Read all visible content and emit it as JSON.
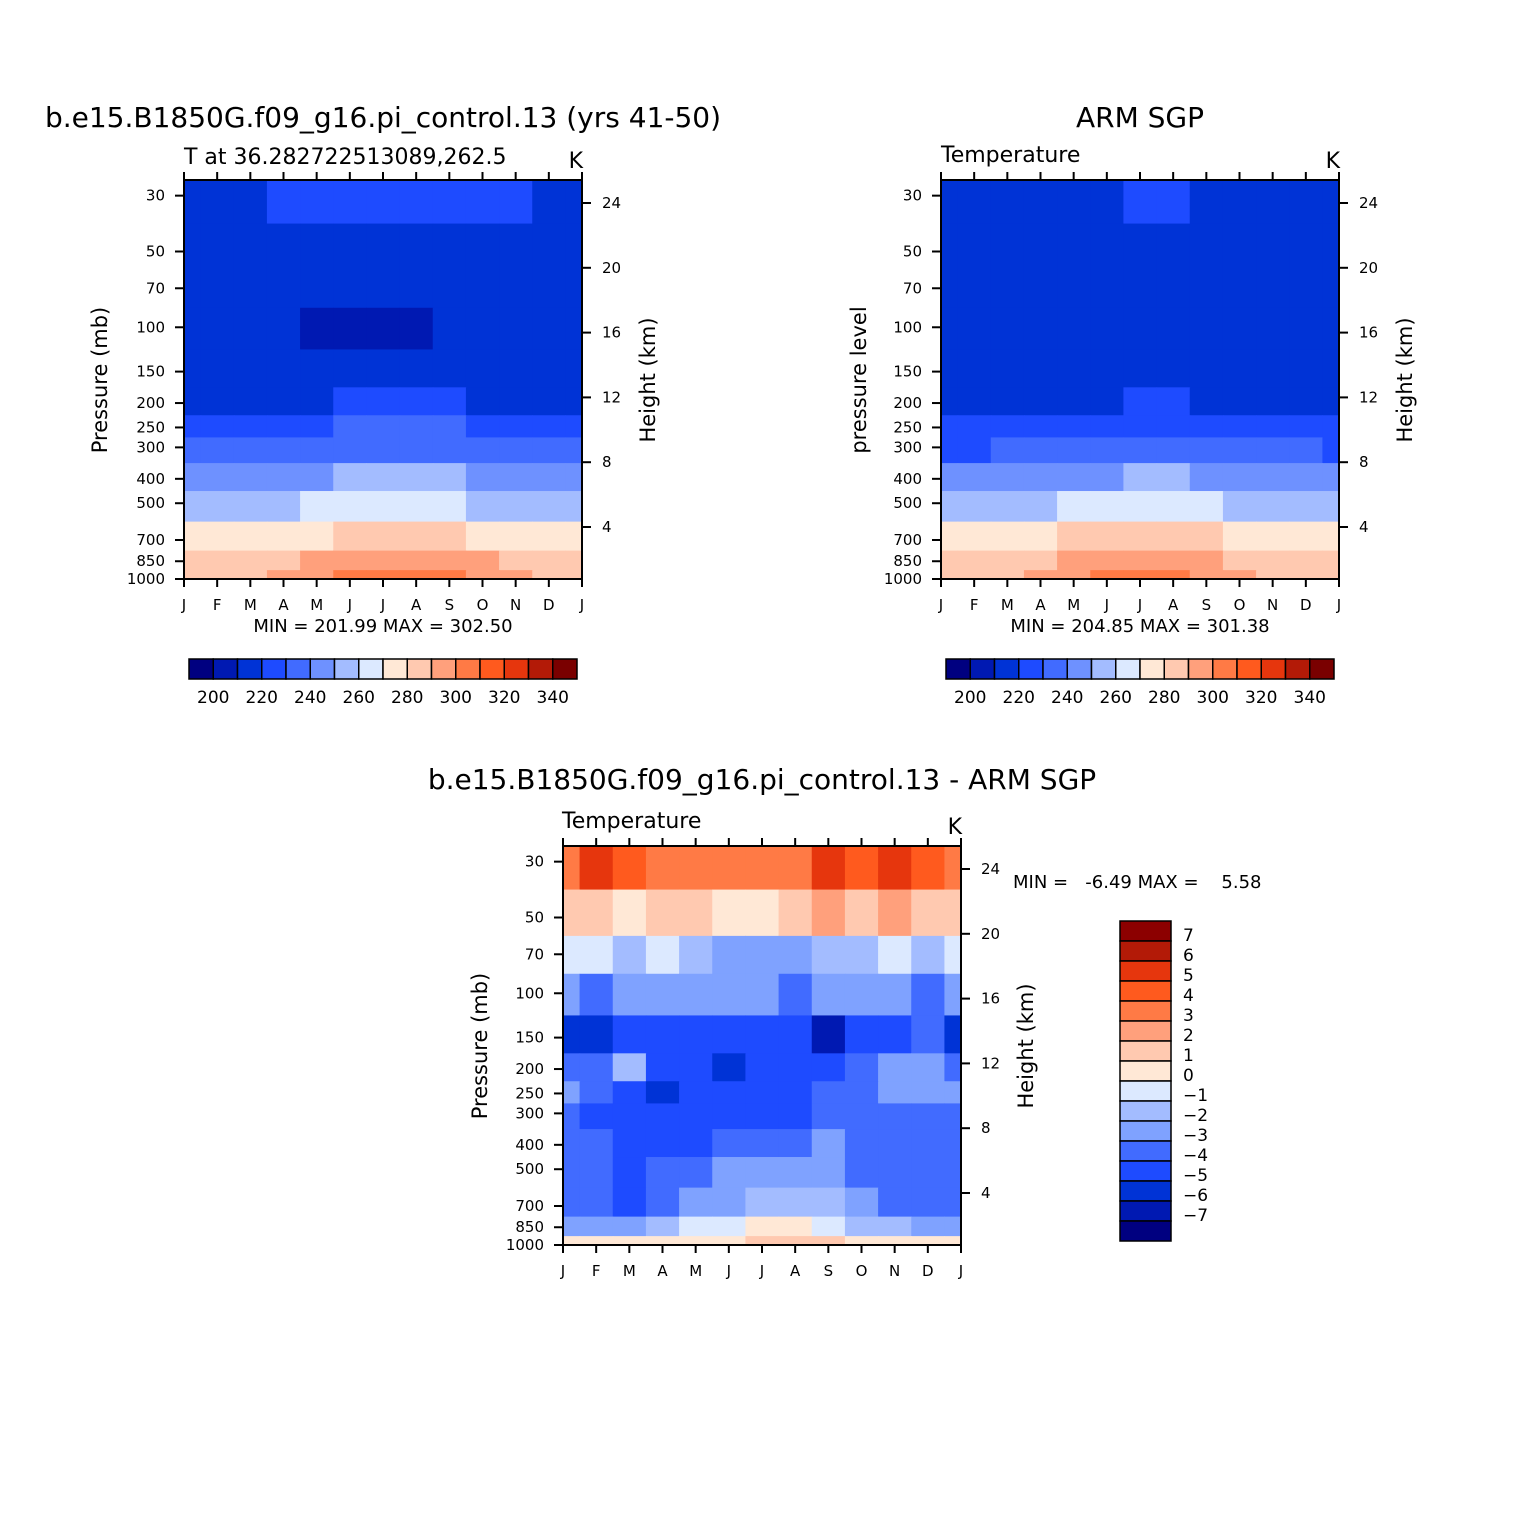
{
  "panels": [
    {
      "title": "b.e15.B1850G.f09_g16.pi_control.13 (yrs 41-50)",
      "subtitle": "T at 36.282722513089,262.5",
      "units": "K",
      "left_axis_label": "Pressure (mb)",
      "right_axis_label": "Height (km)",
      "stats": "MIN = 201.99 MAX = 302.50"
    },
    {
      "title": "ARM SGP",
      "subtitle": "Temperature",
      "units": "K",
      "left_axis_label": "pressure level",
      "right_axis_label": "Height (km)",
      "stats": "MIN = 204.85 MAX = 301.38"
    },
    {
      "title": "b.e15.B1850G.f09_g16.pi_control.13 - ARM SGP",
      "subtitle": "Temperature",
      "units": "K",
      "left_axis_label": "Pressure (mb)",
      "right_axis_label": "Height (km)",
      "stats": "MIN =   -6.49 MAX =    5.58"
    }
  ],
  "colorbars": {
    "absolute": {
      "labels": [
        "200",
        "220",
        "240",
        "260",
        "280",
        "300",
        "320",
        "340"
      ],
      "colors": [
        "#000080",
        "#0019b2",
        "#0033d6",
        "#1e4bff",
        "#416bff",
        "#6e91ff",
        "#a3bcff",
        "#dce9ff",
        "#ffe8d6",
        "#ffc9b0",
        "#ffa07c",
        "#ff7a45",
        "#ff5a1e",
        "#e6360d",
        "#b31a07",
        "#7a0000"
      ]
    },
    "difference": {
      "labels": [
        "7",
        "6",
        "5",
        "4",
        "3",
        "2",
        "1",
        "0",
        "-1",
        "-2",
        "-3",
        "-4",
        "-5",
        "-6",
        "-7"
      ],
      "colors": [
        "#8c0000",
        "#b31a07",
        "#e6360d",
        "#ff5a1e",
        "#ff7a45",
        "#ffa07c",
        "#ffc9b0",
        "#ffe8d6",
        "#dce9ff",
        "#a3bcff",
        "#7fa2ff",
        "#416bff",
        "#1e4bff",
        "#0033d6",
        "#0019b2",
        "#000080"
      ]
    }
  },
  "chart_data": [
    {
      "type": "heatmap",
      "title": "b.e15.B1850G.f09_g16.pi_control.13 (yrs 41-50)",
      "subtitle": "T at 36.282722513089,262.5",
      "units": "K",
      "x": [
        "J",
        "F",
        "M",
        "A",
        "M",
        "J",
        "J",
        "A",
        "S",
        "O",
        "N",
        "D",
        "J"
      ],
      "y_pressure_mb": [
        30,
        50,
        70,
        100,
        150,
        200,
        250,
        300,
        400,
        500,
        700,
        850,
        1000
      ],
      "y_height_km": [
        24,
        20,
        16,
        12,
        8,
        4
      ],
      "levels_K": [
        195,
        205,
        215,
        225,
        235,
        245,
        255,
        265,
        275,
        285,
        295,
        305,
        315,
        325,
        335,
        345
      ],
      "values_K": [
        [
          214,
          214,
          214,
          215,
          217,
          218,
          219,
          219,
          219,
          218,
          215,
          214,
          214
        ],
        [
          211,
          212,
          212,
          212,
          212,
          213,
          213,
          213,
          213,
          213,
          212,
          212,
          211
        ],
        [
          207,
          207,
          209,
          209,
          209,
          209,
          209,
          209,
          209,
          209,
          209,
          209,
          207
        ],
        [
          206,
          206,
          206,
          205,
          204,
          204,
          204,
          204,
          205,
          205,
          205,
          206,
          206
        ],
        [
          211,
          211,
          211,
          207,
          206,
          206,
          206,
          206,
          206,
          206,
          208,
          209,
          211
        ],
        [
          214,
          214,
          214,
          213,
          213,
          215,
          216,
          216,
          215,
          214,
          214,
          213,
          214
        ],
        [
          219,
          219,
          220,
          221,
          223,
          225,
          226,
          226,
          225,
          223,
          221,
          220,
          219
        ],
        [
          225,
          225,
          226,
          228,
          231,
          233,
          234,
          234,
          233,
          230,
          228,
          226,
          225
        ],
        [
          237,
          237,
          239,
          241,
          244,
          246,
          247,
          247,
          246,
          243,
          240,
          238,
          237
        ],
        [
          248,
          248,
          250,
          252,
          255,
          257,
          258,
          258,
          257,
          254,
          251,
          249,
          248
        ],
        [
          266,
          266,
          268,
          271,
          274,
          277,
          278,
          278,
          276,
          273,
          270,
          267,
          266
        ],
        [
          276,
          276,
          279,
          283,
          287,
          290,
          292,
          292,
          290,
          286,
          282,
          278,
          276
        ],
        [
          281,
          281,
          284,
          288,
          292,
          296,
          298,
          299,
          296,
          291,
          286,
          282,
          281
        ]
      ],
      "min": 201.99,
      "max": 302.5
    },
    {
      "type": "heatmap",
      "title": "ARM SGP",
      "subtitle": "Temperature",
      "units": "K",
      "x": [
        "J",
        "F",
        "M",
        "A",
        "M",
        "J",
        "J",
        "A",
        "S",
        "O",
        "N",
        "D",
        "J"
      ],
      "y_pressure_mb": [
        30,
        50,
        70,
        100,
        150,
        200,
        250,
        300,
        400,
        500,
        700,
        850,
        1000
      ],
      "y_height_km": [
        24,
        20,
        16,
        12,
        8,
        4
      ],
      "levels_K": [
        195,
        205,
        215,
        225,
        235,
        245,
        255,
        265,
        275,
        285,
        295,
        305,
        315,
        325,
        335,
        345
      ],
      "values_K": [
        [
          211,
          211,
          211,
          212,
          213,
          214,
          215,
          215,
          214,
          213,
          211,
          211,
          211
        ],
        [
          207,
          207,
          210,
          210,
          210,
          210,
          210,
          210,
          210,
          210,
          210,
          209,
          208
        ],
        [
          205,
          206,
          205,
          205,
          205,
          205,
          205,
          205,
          205,
          205,
          205,
          205,
          205
        ],
        [
          206,
          206,
          206,
          206,
          205,
          205,
          205,
          205,
          205,
          205,
          206,
          206,
          206
        ],
        [
          209,
          209,
          209,
          209,
          208,
          207,
          206,
          206,
          206,
          207,
          208,
          209,
          209
        ],
        [
          213,
          213,
          213,
          213,
          213,
          214,
          215,
          215,
          214,
          213,
          213,
          213,
          213
        ],
        [
          217,
          218,
          218,
          219,
          220,
          221,
          222,
          222,
          221,
          220,
          219,
          218,
          217
        ],
        [
          224,
          224,
          225,
          226,
          228,
          230,
          231,
          231,
          230,
          228,
          226,
          225,
          224
        ],
        [
          237,
          237,
          238,
          240,
          242,
          244,
          246,
          246,
          244,
          241,
          239,
          237,
          237
        ],
        [
          249,
          249,
          251,
          252,
          255,
          258,
          259,
          259,
          257,
          254,
          251,
          249,
          249
        ],
        [
          268,
          268,
          270,
          272,
          275,
          278,
          280,
          279,
          277,
          273,
          270,
          268,
          268
        ],
        [
          275,
          275,
          278,
          282,
          286,
          290,
          292,
          291,
          288,
          284,
          279,
          276,
          275
        ],
        [
          280,
          280,
          283,
          287,
          291,
          295,
          298,
          297,
          293,
          289,
          284,
          281,
          280
        ]
      ],
      "min": 204.85,
      "max": 301.38
    },
    {
      "type": "heatmap",
      "title": "b.e15.B1850G.f09_g16.pi_control.13 - ARM SGP",
      "subtitle": "Temperature",
      "units": "K",
      "x": [
        "J",
        "F",
        "M",
        "A",
        "M",
        "J",
        "J",
        "A",
        "S",
        "O",
        "N",
        "D",
        "J"
      ],
      "y_pressure_mb": [
        30,
        50,
        70,
        100,
        150,
        200,
        250,
        300,
        400,
        500,
        700,
        850,
        1000
      ],
      "y_height_km": [
        24,
        20,
        16,
        12,
        8,
        4
      ],
      "levels_K": [
        -7,
        -6,
        -5,
        -4,
        -3,
        -2,
        -1,
        0,
        1,
        2,
        3,
        4,
        5,
        6,
        7
      ],
      "values_K": [
        [
          3,
          5,
          4,
          3,
          3,
          3,
          3,
          3.5,
          5,
          4,
          5.5,
          4,
          3
        ],
        [
          1,
          1,
          0.5,
          1,
          1,
          0.5,
          0.5,
          1,
          2,
          1.5,
          2,
          1,
          1
        ],
        [
          -1,
          -1,
          -1.5,
          -1,
          -2,
          -2.5,
          -2.5,
          -2.5,
          -1.5,
          -1.5,
          -1,
          -1.5,
          -1
        ],
        [
          -3,
          -3.5,
          -2.5,
          -2.5,
          -3,
          -3,
          -3,
          -3.5,
          -3,
          -3,
          -3,
          -3.5,
          -3
        ],
        [
          -5.5,
          -6,
          -4.5,
          -5,
          -4.5,
          -4.5,
          -4.5,
          -4.5,
          -6.5,
          -5,
          -4.5,
          -4,
          -5.5
        ],
        [
          -4,
          -4,
          -2,
          -4.5,
          -5,
          -5.5,
          -5,
          -4.5,
          -5,
          -4,
          -2.5,
          -2.5,
          -4
        ],
        [
          -3,
          -4,
          -4.5,
          -5.5,
          -5,
          -5,
          -4.5,
          -5,
          -4,
          -3.5,
          -3,
          -3,
          -3
        ],
        [
          -3.5,
          -4.5,
          -5,
          -5,
          -5,
          -4.5,
          -4.5,
          -4.5,
          -3.5,
          -3.5,
          -3.5,
          -3.5,
          -3.5
        ],
        [
          -3.5,
          -3.5,
          -5,
          -4.5,
          -4.5,
          -4,
          -4,
          -3.5,
          -2.5,
          -3.5,
          -3.5,
          -3.5,
          -3.5
        ],
        [
          -3.5,
          -3.5,
          -5,
          -4,
          -3.5,
          -3,
          -3,
          -3,
          -2.5,
          -3.5,
          -3.5,
          -3.5,
          -3.5
        ],
        [
          -3.5,
          -3.5,
          -5,
          -3.5,
          -3,
          -2.5,
          -2,
          -2,
          -1.5,
          -3,
          -3.5,
          -3.5,
          -4
        ],
        [
          -3,
          -3,
          -3,
          -2,
          -1,
          -0.5,
          0,
          0,
          -0.5,
          -1.5,
          -2,
          -2.5,
          -3
        ],
        [
          0,
          0.5,
          0.5,
          0.5,
          0.5,
          0.5,
          1,
          1.5,
          1,
          0.5,
          0.5,
          0.5,
          0
        ]
      ],
      "min": -6.49,
      "max": 5.58
    }
  ]
}
